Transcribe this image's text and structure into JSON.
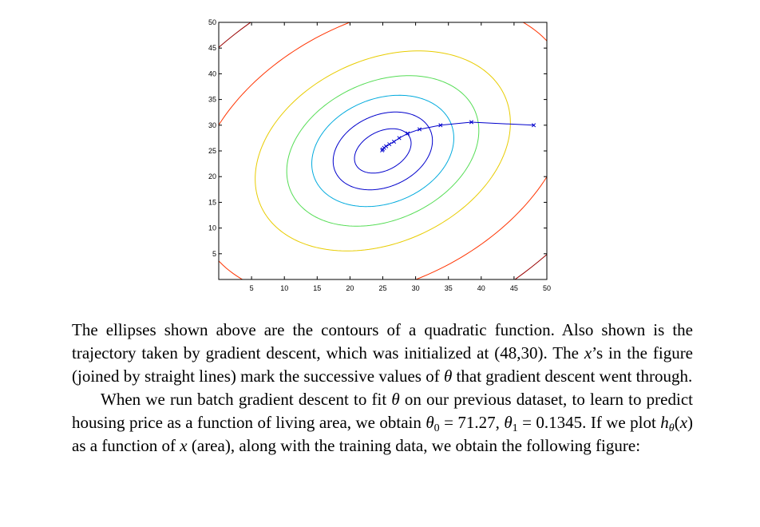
{
  "chart_data": {
    "type": "contour",
    "xlim": [
      0,
      50
    ],
    "ylim": [
      0,
      50
    ],
    "x_ticks": [
      "5",
      "10",
      "15",
      "20",
      "25",
      "30",
      "35",
      "40",
      "45",
      "50"
    ],
    "y_ticks": [
      "5",
      "10",
      "15",
      "20",
      "25",
      "30",
      "35",
      "40",
      "45",
      "50"
    ],
    "center": [
      25,
      25
    ],
    "contour_levels": [
      {
        "semi_major": 5,
        "semi_minor": 3.5,
        "angle_deg": 45,
        "color": "#0000cc"
      },
      {
        "semi_major": 8.5,
        "semi_minor": 6.5,
        "angle_deg": 45,
        "color": "#0000cc"
      },
      {
        "semi_major": 12,
        "semi_minor": 9.5,
        "angle_deg": 45,
        "color": "#00aadd"
      },
      {
        "semi_major": 16.5,
        "semi_minor": 12.5,
        "angle_deg": 45,
        "color": "#55dd55"
      },
      {
        "semi_major": 22,
        "semi_minor": 16.5,
        "angle_deg": 45,
        "color": "#e8cc00"
      },
      {
        "semi_major": 33,
        "semi_minor": 23.5,
        "angle_deg": 45,
        "color": "#ff3300"
      },
      {
        "semi_major": 49,
        "semi_minor": 32,
        "angle_deg": 45,
        "color": "#990000"
      }
    ],
    "trajectory": {
      "color": "#0000cc",
      "points": [
        [
          48,
          30
        ],
        [
          38.5,
          30.6
        ],
        [
          33.8,
          30
        ],
        [
          30.6,
          29.2
        ],
        [
          28.8,
          28.4
        ],
        [
          27.5,
          27.5
        ],
        [
          26.7,
          26.8
        ],
        [
          26.0,
          26.3
        ],
        [
          25.5,
          25.9
        ],
        [
          25.2,
          25.6
        ],
        [
          25.0,
          25.3
        ],
        [
          24.9,
          25.1
        ]
      ]
    }
  },
  "paragraph1": {
    "t1": "The ellipses shown above are the contours of a quadratic function. Also shown is the trajectory taken by gradient descent, which was initialized at (48,30). The ",
    "m1": "x",
    "t2": "’s in the figure (joined by straight lines) mark the successive values of ",
    "m2": "θ",
    "t3": " that gradient descent went through."
  },
  "paragraph2": {
    "t1": "When we run batch gradient descent to fit ",
    "m1": "θ",
    "t2": " on our previous dataset, to learn to predict housing price as a function of living area, we obtain ",
    "m2": "θ",
    "s2": "0",
    "t3": " = 71.27, ",
    "m3": "θ",
    "s3": "1",
    "t4": " = 0.1345.  If we plot ",
    "m4": "h",
    "s4": "θ",
    "t5": "(",
    "m5": "x",
    "t6": ") as a function of ",
    "m6": "x",
    "t7": " (area), along with the training data, we obtain the following figure:"
  }
}
